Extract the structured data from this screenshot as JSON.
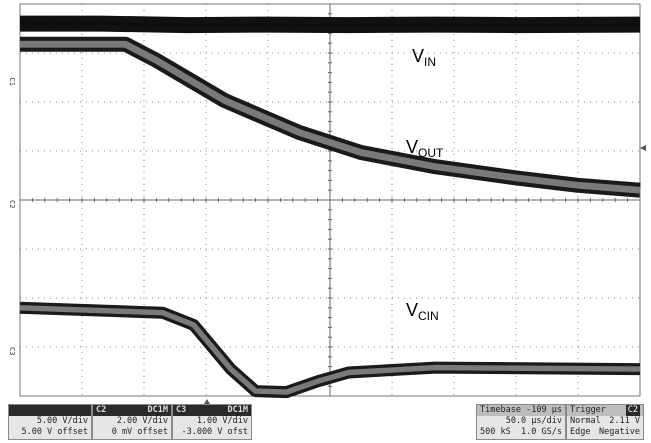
{
  "chart_data": {
    "type": "line",
    "x_range": [
      0,
      10
    ],
    "y_range": [
      -4,
      4
    ],
    "grid": true,
    "grid_divisions": {
      "x": 10,
      "y": 8
    },
    "labels": {
      "vin": {
        "base": "V",
        "sub": "IN"
      },
      "vout": {
        "base": "V",
        "sub": "OUT"
      },
      "vcin": {
        "base": "V",
        "sub": "CIN"
      }
    },
    "channel_markers": [
      "C1",
      "C2",
      "C3"
    ],
    "series": [
      {
        "channel": "C1",
        "points": [
          [
            0,
            3.6
          ],
          [
            1.3,
            3.6
          ],
          [
            2.7,
            3.57
          ],
          [
            4,
            3.58
          ],
          [
            5.3,
            3.57
          ],
          [
            6.7,
            3.58
          ],
          [
            8,
            3.57
          ],
          [
            10,
            3.58
          ]
        ]
      },
      {
        "channel": "C2",
        "points": [
          [
            0,
            3.18
          ],
          [
            1.7,
            3.18
          ],
          [
            2.2,
            2.85
          ],
          [
            3.3,
            2.03
          ],
          [
            4.5,
            1.38
          ],
          [
            5.5,
            0.97
          ],
          [
            6.7,
            0.68
          ],
          [
            8,
            0.45
          ],
          [
            9,
            0.3
          ],
          [
            10,
            0.2
          ]
        ]
      },
      {
        "channel": "C3",
        "points": [
          [
            0,
            -2.2
          ],
          [
            2.3,
            -2.3
          ],
          [
            2.8,
            -2.55
          ],
          [
            3.4,
            -3.45
          ],
          [
            3.8,
            -3.9
          ],
          [
            4.3,
            -3.92
          ],
          [
            4.8,
            -3.7
          ],
          [
            5.3,
            -3.52
          ],
          [
            6.7,
            -3.42
          ],
          [
            10,
            -3.45
          ]
        ]
      }
    ]
  },
  "status_bar": {
    "channels": [
      {
        "name": "",
        "coupling": "",
        "scale": "5.00 V/div",
        "offset": "5.00 V offset"
      },
      {
        "name": "C2",
        "coupling": "DC1M",
        "scale": "2.00 V/div",
        "offset": "0 mV offset"
      },
      {
        "name": "C3",
        "coupling": "DC1M",
        "scale": "1.00 V/div",
        "offset": "-3.000 V ofst"
      }
    ],
    "timebase": {
      "label": "Timebase",
      "delay": "-109 µs",
      "rate": "50.0 µs/div",
      "points": "500 kS",
      "sample_rate": "1.0 GS/s"
    },
    "trigger": {
      "label": "Trigger",
      "source": "C2",
      "mode": "Normal",
      "level": "2.11 V",
      "type": "Edge",
      "slope": "Negative"
    }
  }
}
